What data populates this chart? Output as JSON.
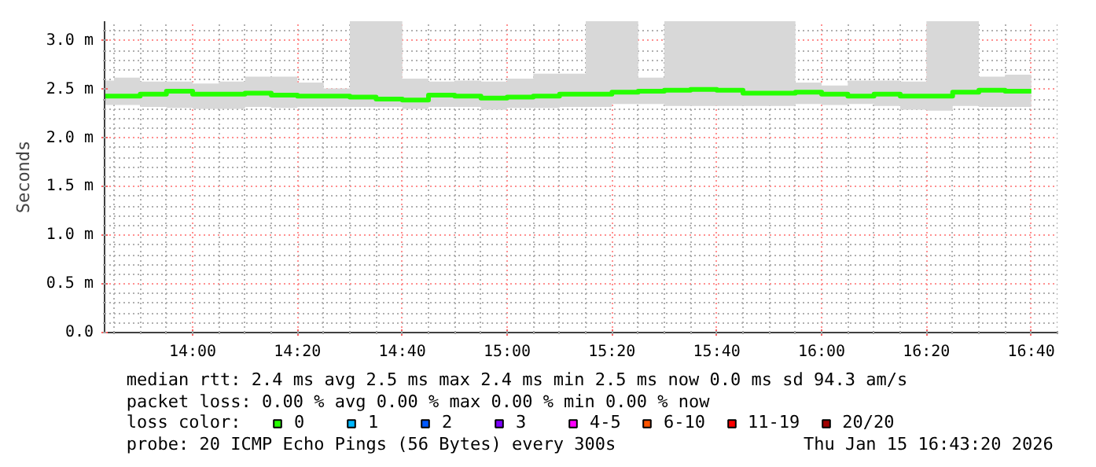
{
  "chart_data": {
    "type": "step",
    "ylabel": "Seconds",
    "x": [
      13.75,
      13.8333,
      13.9167,
      14.0,
      14.0833,
      14.1667,
      14.25,
      14.3333,
      14.4167,
      14.5,
      14.5833,
      14.6667,
      14.75,
      14.8333,
      14.9167,
      15.0,
      15.0833,
      15.1667,
      15.25,
      15.3333,
      15.4167,
      15.5,
      15.5833,
      15.6667,
      15.75,
      15.8333,
      15.9167,
      16.0,
      16.0833,
      16.1667,
      16.25,
      16.3333,
      16.4167,
      16.5,
      16.5833,
      16.6667
    ],
    "series": [
      {
        "name": "0",
        "color": "#26ff00",
        "values": [
          2.43,
          2.43,
          2.45,
          2.48,
          2.45,
          2.45,
          2.46,
          2.44,
          2.43,
          2.43,
          2.42,
          2.4,
          2.39,
          2.44,
          2.43,
          2.41,
          2.42,
          2.43,
          2.45,
          2.45,
          2.47,
          2.48,
          2.49,
          2.5,
          2.49,
          2.46,
          2.46,
          2.47,
          2.45,
          2.43,
          2.45,
          2.43,
          2.43,
          2.47,
          2.49,
          2.48
        ],
        "lower": [
          2.34,
          2.34,
          2.32,
          2.31,
          2.3,
          2.3,
          2.32,
          2.31,
          2.32,
          2.32,
          2.32,
          2.32,
          2.3,
          2.32,
          2.32,
          2.29,
          2.31,
          2.31,
          2.32,
          2.32,
          2.35,
          2.35,
          2.33,
          2.33,
          2.33,
          2.33,
          2.33,
          2.35,
          2.34,
          2.35,
          2.33,
          2.29,
          2.28,
          2.33,
          2.32,
          2.32
        ],
        "upper": [
          2.59,
          2.62,
          2.58,
          2.58,
          2.56,
          2.58,
          2.63,
          2.63,
          2.57,
          2.51,
          3.2,
          3.2,
          2.61,
          2.58,
          2.59,
          2.58,
          2.61,
          2.66,
          2.66,
          3.2,
          3.2,
          2.62,
          3.2,
          3.2,
          3.2,
          3.2,
          3.2,
          2.57,
          2.54,
          2.59,
          2.59,
          2.58,
          3.2,
          3.2,
          2.63,
          2.65
        ]
      },
      {
        "name": "1",
        "color": "#00b8ff",
        "values": [
          null,
          null,
          null,
          null,
          null,
          null,
          null,
          null,
          null,
          null,
          null,
          null,
          null,
          null,
          null,
          null,
          null,
          null,
          null,
          null,
          null,
          null,
          null,
          null,
          null,
          null,
          null,
          null,
          null,
          null,
          null,
          null,
          null,
          null,
          null,
          null
        ]
      },
      {
        "name": "2",
        "color": "#0059ff",
        "values": [
          null,
          null,
          null,
          null,
          null,
          null,
          null,
          null,
          null,
          null,
          null,
          null,
          null,
          null,
          null,
          null,
          null,
          null,
          null,
          null,
          null,
          null,
          null,
          null,
          null,
          null,
          null,
          null,
          null,
          null,
          null,
          null,
          null,
          null,
          null,
          null
        ]
      },
      {
        "name": "3",
        "color": "#7e00ff",
        "values": [
          null,
          null,
          null,
          null,
          null,
          null,
          null,
          null,
          null,
          null,
          null,
          null,
          null,
          null,
          null,
          null,
          null,
          null,
          null,
          null,
          null,
          null,
          null,
          null,
          null,
          null,
          null,
          null,
          null,
          null,
          null,
          null,
          null,
          null,
          null,
          null
        ]
      },
      {
        "name": "4-5",
        "color": "#ff00ff",
        "values": [
          null,
          null,
          null,
          null,
          null,
          null,
          null,
          null,
          null,
          null,
          null,
          null,
          null,
          null,
          null,
          null,
          null,
          null,
          null,
          null,
          null,
          null,
          null,
          null,
          null,
          null,
          null,
          null,
          null,
          null,
          null,
          null,
          null,
          null,
          null,
          null
        ]
      },
      {
        "name": "6-10",
        "color": "#ff5500",
        "values": [
          null,
          null,
          null,
          null,
          null,
          null,
          null,
          null,
          null,
          null,
          null,
          null,
          null,
          null,
          null,
          null,
          null,
          null,
          null,
          null,
          null,
          null,
          null,
          null,
          null,
          null,
          null,
          null,
          null,
          null,
          null,
          null,
          null,
          null,
          null,
          null
        ]
      },
      {
        "name": "11-19",
        "color": "#ff0000",
        "values": [
          null,
          null,
          null,
          null,
          null,
          null,
          null,
          null,
          null,
          null,
          null,
          null,
          null,
          null,
          null,
          null,
          null,
          null,
          null,
          null,
          null,
          null,
          null,
          null,
          null,
          null,
          null,
          null,
          null,
          null,
          null,
          null,
          null,
          null,
          null,
          null
        ]
      },
      {
        "name": "20/20",
        "color": "#a10000",
        "values": [
          null,
          null,
          null,
          null,
          null,
          null,
          null,
          null,
          null,
          null,
          null,
          null,
          null,
          null,
          null,
          null,
          null,
          null,
          null,
          null,
          null,
          null,
          null,
          null,
          null,
          null,
          null,
          null,
          null,
          null,
          null,
          null,
          null,
          null,
          null,
          null
        ]
      }
    ],
    "xlim": [
      13.72,
      16.75
    ],
    "xticks": [
      {
        "value": 14.0,
        "label": "14:00"
      },
      {
        "value": 14.3333,
        "label": "14:20"
      },
      {
        "value": 14.6667,
        "label": "14:40"
      },
      {
        "value": 15.0,
        "label": "15:00"
      },
      {
        "value": 15.3333,
        "label": "15:20"
      },
      {
        "value": 15.6667,
        "label": "15:40"
      },
      {
        "value": 16.0,
        "label": "16:00"
      },
      {
        "value": 16.3333,
        "label": "16:20"
      },
      {
        "value": 16.6667,
        "label": "16:40"
      }
    ],
    "ylim": [
      0,
      3.2
    ],
    "yticks": [
      {
        "value": 0,
        "label": "0.0"
      },
      {
        "value": 0.5,
        "label": "0.5 m"
      },
      {
        "value": 1.0,
        "label": "1.0 m"
      },
      {
        "value": 1.5,
        "label": "1.5 m"
      },
      {
        "value": 2.0,
        "label": "2.0 m"
      },
      {
        "value": 2.5,
        "label": "2.5 m"
      },
      {
        "value": 3.0,
        "label": "3.0 m"
      }
    ],
    "grid": true,
    "legend": "bottom",
    "legend_title": "loss color:",
    "annotations": [
      "median rtt:  2.4 ms avg  2.5 ms max  2.4 ms min  2.5 ms now  0.0 ms sd  94.3   am/s",
      "packet loss: 0.00 % avg  0.00 % max  0.00 % min  0.00 % now",
      "probe:       20 ICMP Echo Pings (56 Bytes) every 300s",
      "Thu Jan 15 16:43:20 2026"
    ]
  }
}
